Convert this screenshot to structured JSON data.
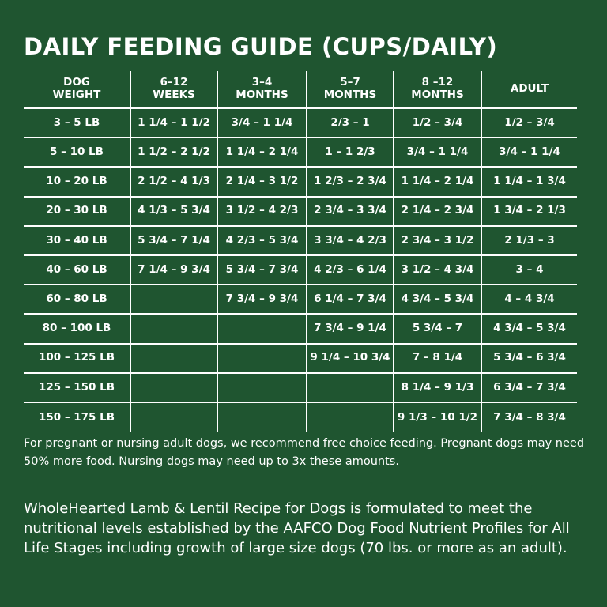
{
  "title": "DAILY FEEDING GUIDE (CUPS/DAILY)",
  "headers": [
    [
      "DOG",
      "WEIGHT"
    ],
    [
      "6–12",
      "WEEKS"
    ],
    [
      "3–4",
      "MONTHS"
    ],
    [
      "5–7",
      "MONTHS"
    ],
    [
      "8 –12",
      "MONTHS"
    ],
    [
      "ADULT"
    ]
  ],
  "rows": [
    [
      "3 – 5 LB",
      "1 1/4 – 1 1/2",
      "3/4 – 1 1/4",
      "2/3 – 1",
      "1/2 – 3/4",
      "1/2 – 3/4"
    ],
    [
      "5 – 10 LB",
      "1 1/2 – 2 1/2",
      "1 1/4 – 2 1/4",
      "1 – 1 2/3",
      "3/4 – 1 1/4",
      "3/4 – 1 1/4"
    ],
    [
      "10 – 20 LB",
      "2 1/2 – 4 1/3",
      "2 1/4 – 3 1/2",
      "1 2/3 – 2 3/4",
      "1 1/4 – 2 1/4",
      "1 1/4 – 1 3/4"
    ],
    [
      "20 – 30 LB",
      "4 1/3 – 5 3/4",
      "3 1/2 – 4 2/3",
      "2 3/4 – 3 3/4",
      "2 1/4 – 2 3/4",
      "1 3/4 – 2 1/3"
    ],
    [
      "30 – 40 LB",
      "5 3/4 – 7 1/4",
      "4 2/3 – 5 3/4",
      "3 3/4 – 4 2/3",
      "2 3/4 – 3 1/2",
      "2 1/3 – 3"
    ],
    [
      "40 – 60 LB",
      "7 1/4 – 9 3/4",
      "5 3/4 – 7 3/4",
      "4 2/3 – 6 1/4",
      "3 1/2 – 4 3/4",
      "3 – 4"
    ],
    [
      "60 – 80 LB",
      "",
      "7 3/4 – 9 3/4",
      "6 1/4 – 7 3/4",
      "4 3/4 – 5 3/4",
      "4 – 4 3/4"
    ],
    [
      "80 – 100 LB",
      "",
      "",
      "7 3/4 – 9 1/4",
      "5 3/4 – 7",
      "4 3/4 – 5 3/4"
    ],
    [
      "100 – 125 LB",
      "",
      "",
      "9 1/4 – 10 3/4",
      "7 – 8 1/4",
      "5 3/4 – 6 3/4"
    ],
    [
      "125 – 150 LB",
      "",
      "",
      "",
      "8 1/4 – 9 1/3",
      "6 3/4 – 7 3/4"
    ],
    [
      "150 – 175 LB",
      "",
      "",
      "",
      "9 1/3 – 10 1/2",
      "7 3/4 – 8 3/4"
    ]
  ],
  "note": "For pregnant or nursing adult dogs, we recommend free choice feeding. Pregnant dogs may need 50% more food. Nursing dogs may need up to 3x these amounts.",
  "formulation": "WholeHearted Lamb & Lentil Recipe for Dogs is formulated to meet the nutritional levels established by the AAFCO Dog Food Nutrient Profiles for All Life Stages including growth of large size dogs (70 lbs. or more as an adult).",
  "colors": {
    "background": "#1f5530",
    "text": "#ffffff",
    "rule": "#ffffff"
  }
}
